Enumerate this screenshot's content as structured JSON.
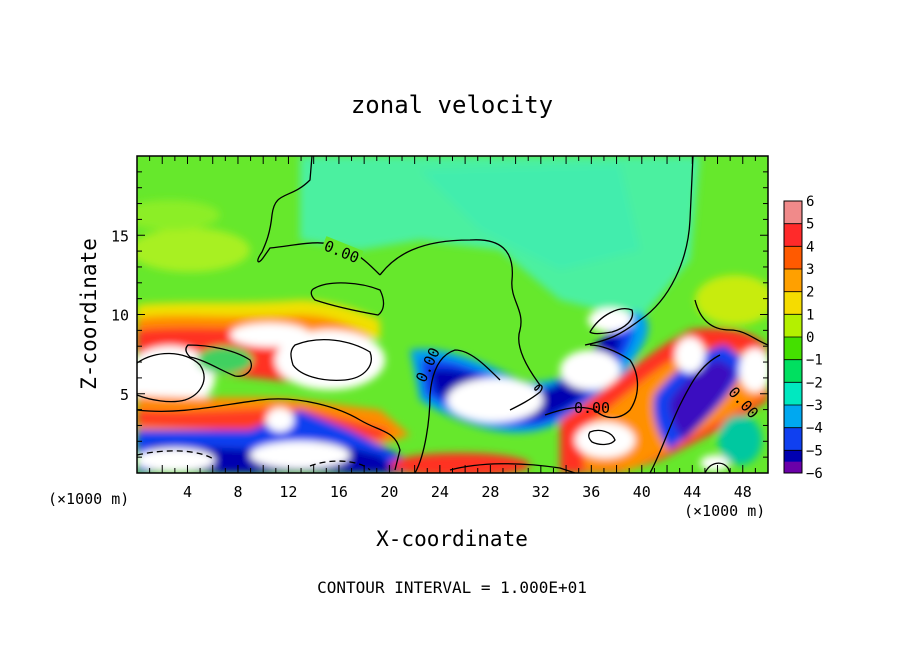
{
  "chart_data": {
    "type": "heatmap",
    "title": "zonal velocity",
    "xlabel": "X-coordinate",
    "ylabel": "Z-coordinate",
    "x_unit_left": "(×1000 m)",
    "x_unit_right": "(×1000 m)",
    "x_ticks": [
      "4",
      "8",
      "12",
      "16",
      "20",
      "24",
      "28",
      "32",
      "36",
      "40",
      "44",
      "48"
    ],
    "x_tick_values": [
      4,
      8,
      12,
      16,
      20,
      24,
      28,
      32,
      36,
      40,
      44,
      48
    ],
    "y_ticks": [
      "5",
      "10",
      "15"
    ],
    "y_tick_values": [
      5,
      10,
      15
    ],
    "xlim": [
      0,
      50
    ],
    "ylim": [
      0,
      20
    ],
    "colorbar": {
      "labels": [
        "6",
        "5",
        "4",
        "3",
        "2",
        "1",
        "0",
        "−1",
        "−2",
        "−3",
        "−4",
        "−5",
        "−6"
      ],
      "values": [
        6,
        5,
        4,
        3,
        2,
        1,
        0,
        -1,
        -2,
        -3,
        -4,
        -5,
        -6
      ],
      "colors": [
        "#f08a8a",
        "#ff2a2a",
        "#ff5a00",
        "#ffa000",
        "#f5dc00",
        "#b4f000",
        "#44e000",
        "#00e060",
        "#00e8c0",
        "#00a8f0",
        "#1040f0",
        "#0000b0",
        "#6a00a8"
      ],
      "below_min_color": "#ffffff",
      "above_max_color": "#ffffff"
    },
    "contour_labels": [
      "0.00",
      "0.00",
      "0.00",
      "0.00"
    ],
    "footnote": "CONTOUR INTERVAL = 1.000E+01"
  }
}
